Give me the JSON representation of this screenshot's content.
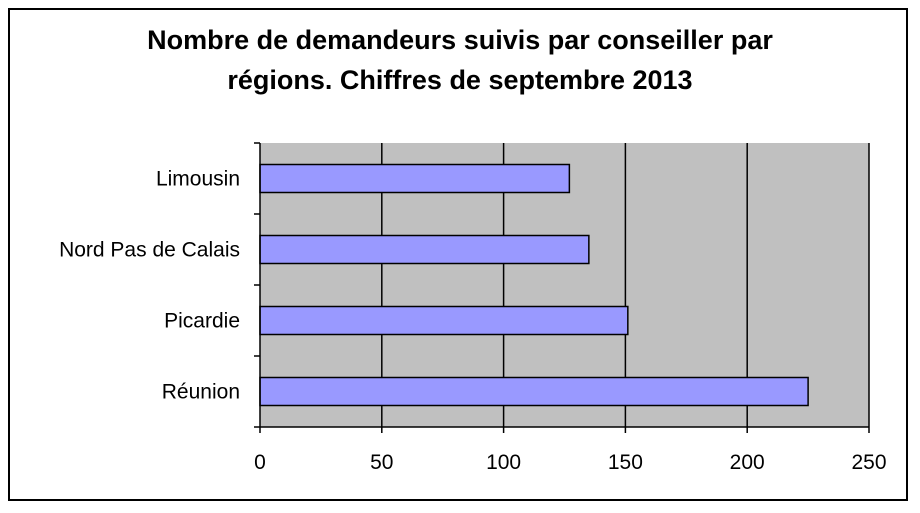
{
  "chart_data": {
    "type": "bar",
    "orientation": "horizontal",
    "title_lines": [
      "Nombre de demandeurs suivis par conseiller par",
      "régions. Chiffres de septembre 2013"
    ],
    "categories": [
      "Limousin",
      "Nord Pas de Calais",
      "Picardie",
      "Réunion"
    ],
    "values": [
      127,
      135,
      151,
      225
    ],
    "xlim": [
      0,
      250
    ],
    "xticks": [
      "0",
      "50",
      "100",
      "150",
      "200",
      "250"
    ],
    "grid": "vertical",
    "bar_color": "#9999ff",
    "plot_background": "#c0c0c0",
    "xlabel": "",
    "ylabel": ""
  }
}
